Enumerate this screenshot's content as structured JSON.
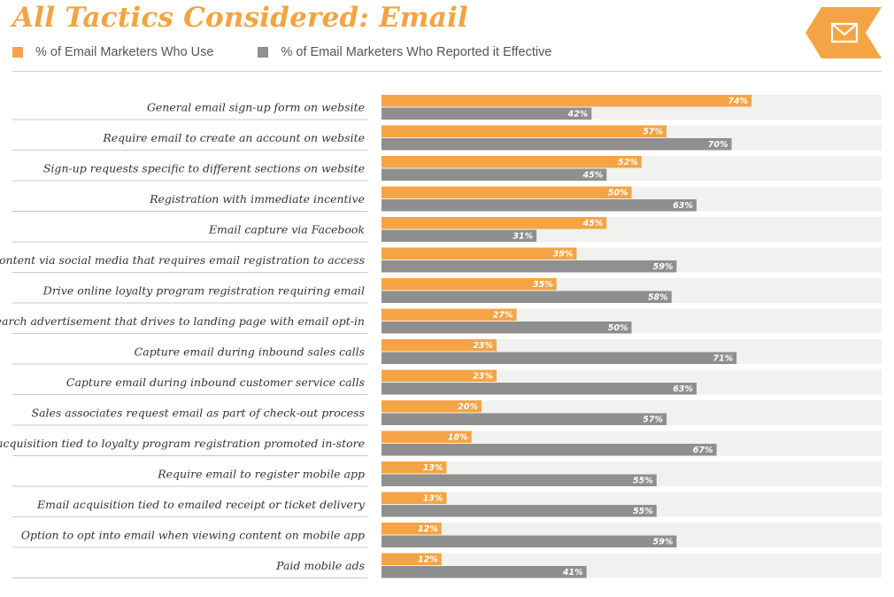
{
  "title": "All Tactics Considered: Email",
  "legend": {
    "use_label": "% of Email Marketers Who Use",
    "effective_label": "% of Email Marketers Who Reported it Effective"
  },
  "colors": {
    "use": "#f5a445",
    "effective": "#8f8f8f",
    "row_bg": "#f1f1ef",
    "badge": "#f5a445"
  },
  "badge_icon": "envelope-icon",
  "chart_data": {
    "type": "bar",
    "orientation": "horizontal",
    "title": "All Tactics Considered: Email",
    "xlim": [
      0,
      100
    ],
    "categories": [
      "General email sign-up form on website",
      "Require email to create an account on website",
      "Sign-up requests specific to different sections on website",
      "Registration with immediate incentive",
      "Email capture via Facebook",
      "Promote content via social media that requires email registration to access",
      "Drive online loyalty program registration requiring email",
      "Paid search advertisement that drives to landing page with email opt-in",
      "Capture email during inbound sales calls",
      "Capture email during inbound customer service calls",
      "Sales associates request email as part of check-out process",
      "Email acquisition tied to loyalty program registration promoted in-store",
      "Require email to register mobile app",
      "Email acquisition tied to emailed receipt or ticket delivery",
      "Option to opt into email when viewing content on mobile app",
      "Paid mobile ads"
    ],
    "series": [
      {
        "name": "% of Email Marketers Who Use",
        "values": [
          74,
          57,
          52,
          50,
          45,
          39,
          35,
          27,
          23,
          23,
          20,
          18,
          13,
          13,
          12,
          12
        ]
      },
      {
        "name": "% of Email Marketers Who Reported it Effective",
        "values": [
          42,
          70,
          45,
          63,
          31,
          59,
          58,
          50,
          71,
          63,
          57,
          67,
          55,
          55,
          59,
          41
        ]
      }
    ],
    "value_suffix": "%",
    "legend_position": "top-left"
  }
}
